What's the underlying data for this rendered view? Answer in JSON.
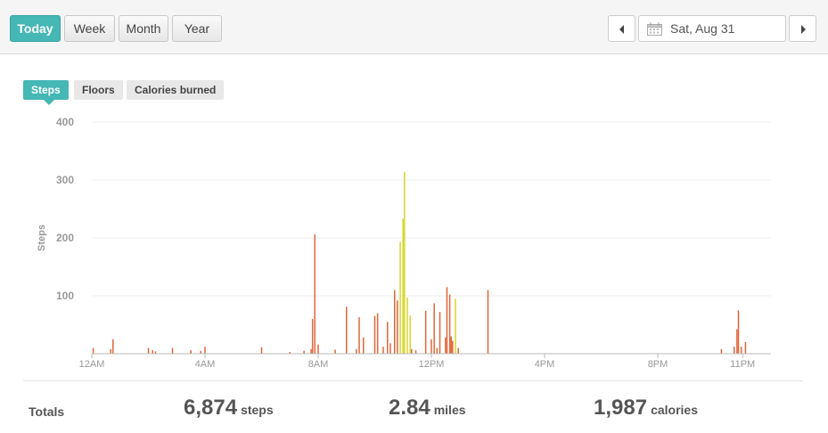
{
  "range_buttons": [
    {
      "label": "Today",
      "active": true
    },
    {
      "label": "Week",
      "active": false
    },
    {
      "label": "Month",
      "active": false
    },
    {
      "label": "Year",
      "active": false
    }
  ],
  "date_nav": {
    "prev_icon": "chevron-left-icon",
    "calendar_icon": "calendar-icon",
    "date_label": "Sat, Aug 31",
    "next_icon": "chevron-right-icon"
  },
  "metric_tabs": [
    {
      "label": "Steps",
      "active": true
    },
    {
      "label": "Floors",
      "active": false
    },
    {
      "label": "Calories burned",
      "active": false
    }
  ],
  "colors": {
    "accent": "#45b7b5",
    "bar_normal": "#e0663a",
    "bar_active": "#d6d62a",
    "grid": "#eeeeee"
  },
  "chart_data": {
    "type": "bar",
    "ylabel": "Steps",
    "ylim": [
      0,
      400
    ],
    "yticks": [
      100,
      200,
      300,
      400
    ],
    "xlim_hours": [
      0,
      24
    ],
    "xticks": [
      {
        "hour": 0,
        "label": "12AM"
      },
      {
        "hour": 4,
        "label": "4AM"
      },
      {
        "hour": 8,
        "label": "8AM"
      },
      {
        "hour": 12,
        "label": "12PM"
      },
      {
        "hour": 16,
        "label": "4PM"
      },
      {
        "hour": 20,
        "label": "8PM"
      },
      {
        "hour": 23,
        "label": "11PM"
      }
    ],
    "grid": true,
    "series": [
      {
        "values": [
          {
            "hour": 0.05,
            "steps": 10
          },
          {
            "hour": 0.67,
            "steps": 8
          },
          {
            "hour": 0.75,
            "steps": 25
          },
          {
            "hour": 2.0,
            "steps": 10
          },
          {
            "hour": 2.15,
            "steps": 6
          },
          {
            "hour": 2.25,
            "steps": 4
          },
          {
            "hour": 2.85,
            "steps": 10
          },
          {
            "hour": 3.5,
            "steps": 6
          },
          {
            "hour": 3.85,
            "steps": 5
          },
          {
            "hour": 4.0,
            "steps": 12
          },
          {
            "hour": 6.0,
            "steps": 11
          },
          {
            "hour": 7.0,
            "steps": 3
          },
          {
            "hour": 7.5,
            "steps": 5
          },
          {
            "hour": 7.75,
            "steps": 8
          },
          {
            "hour": 7.8,
            "steps": 60
          },
          {
            "hour": 7.88,
            "steps": 206
          },
          {
            "hour": 8.0,
            "steps": 16
          },
          {
            "hour": 8.6,
            "steps": 7
          },
          {
            "hour": 9.0,
            "steps": 81
          },
          {
            "hour": 9.35,
            "steps": 8
          },
          {
            "hour": 9.45,
            "steps": 63
          },
          {
            "hour": 9.6,
            "steps": 28
          },
          {
            "hour": 10.0,
            "steps": 65
          },
          {
            "hour": 10.1,
            "steps": 70
          },
          {
            "hour": 10.3,
            "steps": 12
          },
          {
            "hour": 10.45,
            "steps": 55
          },
          {
            "hour": 10.55,
            "steps": 18
          },
          {
            "hour": 10.7,
            "steps": 110
          },
          {
            "hour": 10.8,
            "steps": 92
          },
          {
            "hour": 11.3,
            "steps": 8
          },
          {
            "hour": 11.45,
            "steps": 6
          },
          {
            "hour": 11.8,
            "steps": 74
          },
          {
            "hour": 12.0,
            "steps": 25
          },
          {
            "hour": 12.1,
            "steps": 87
          },
          {
            "hour": 12.2,
            "steps": 10
          },
          {
            "hour": 12.3,
            "steps": 72
          },
          {
            "hour": 12.5,
            "steps": 28
          },
          {
            "hour": 12.55,
            "steps": 115
          },
          {
            "hour": 12.65,
            "steps": 102
          },
          {
            "hour": 12.7,
            "steps": 30
          },
          {
            "hour": 12.75,
            "steps": 22
          },
          {
            "hour": 12.95,
            "steps": 10
          },
          {
            "hour": 14.0,
            "steps": 110
          },
          {
            "hour": 22.25,
            "steps": 8
          },
          {
            "hour": 22.7,
            "steps": 12
          },
          {
            "hour": 22.8,
            "steps": 42
          },
          {
            "hour": 22.85,
            "steps": 75
          },
          {
            "hour": 22.95,
            "steps": 12
          },
          {
            "hour": 23.1,
            "steps": 20
          }
        ]
      },
      {
        "values": [
          {
            "hour": 10.9,
            "steps": 193
          },
          {
            "hour": 11.0,
            "steps": 233
          },
          {
            "hour": 11.05,
            "steps": 314
          },
          {
            "hour": 11.15,
            "steps": 97
          },
          {
            "hour": 11.25,
            "steps": 66
          },
          {
            "hour": 12.85,
            "steps": 95
          }
        ]
      }
    ]
  },
  "totals": {
    "label": "Totals",
    "steps": {
      "value": "6,874",
      "unit": "steps"
    },
    "distance": {
      "value": "2.84",
      "unit": "miles"
    },
    "calories": {
      "value": "1,987",
      "unit": "calories"
    }
  }
}
